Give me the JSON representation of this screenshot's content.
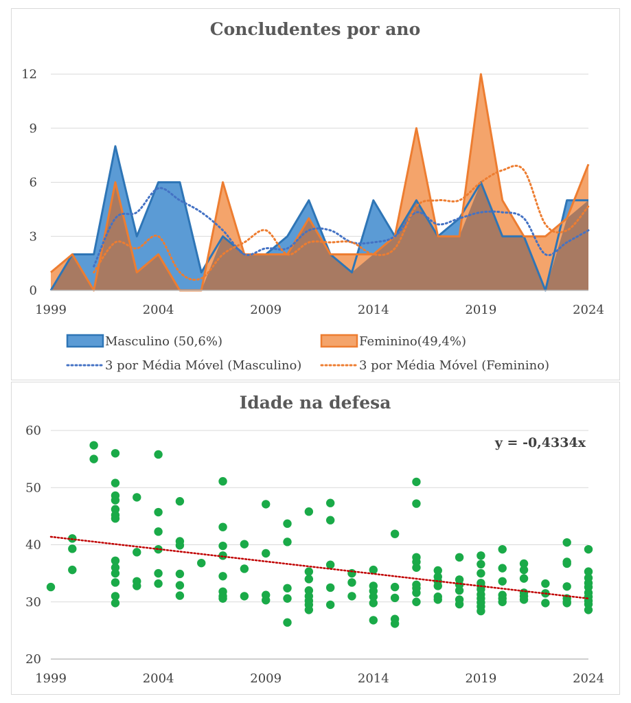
{
  "chart_data": [
    {
      "type": "area",
      "title": "Concludentes por ano",
      "xlabel": "",
      "ylabel": "",
      "x": [
        1999,
        2000,
        2001,
        2002,
        2003,
        2004,
        2005,
        2006,
        2007,
        2008,
        2009,
        2010,
        2011,
        2012,
        2013,
        2014,
        2015,
        2016,
        2017,
        2018,
        2019,
        2020,
        2021,
        2022,
        2023,
        2024
      ],
      "x_ticks": [
        "1999",
        "2004",
        "2009",
        "2014",
        "2019",
        "2024"
      ],
      "y_ticks": [
        "0",
        "3",
        "6",
        "9",
        "12"
      ],
      "ylim": [
        0,
        12
      ],
      "grid": true,
      "legend_position": "bottom",
      "series": [
        {
          "name": "Masculino (50,6%)",
          "kind": "area",
          "values": [
            0,
            2,
            2,
            8,
            3,
            6,
            6,
            1,
            3,
            2,
            2,
            3,
            5,
            2,
            1,
            5,
            3,
            5,
            3,
            4,
            6,
            3,
            3,
            0,
            5,
            5
          ]
        },
        {
          "name": "Feminino(49,4%)",
          "kind": "area",
          "values": [
            1,
            2,
            0,
            6,
            1,
            2,
            0,
            0,
            6,
            2,
            2,
            2,
            4,
            2,
            2,
            2,
            3,
            9,
            3,
            3,
            12,
            5,
            3,
            3,
            4,
            7
          ]
        },
        {
          "name": "3 por Média Móvel (Masculino)",
          "kind": "moving-average",
          "period": 3,
          "of": 0
        },
        {
          "name": "3 por Média Móvel (Feminino)",
          "kind": "moving-average",
          "period": 3,
          "of": 1
        }
      ],
      "colors": {
        "masculino_fill": "#5b9bd5",
        "masculino_line": "#2e75b6",
        "feminino_fill": "#f4a46b",
        "feminino_line": "#ed7d31",
        "overlap": "#a87a62",
        "ma_masculino": "#4472c4",
        "ma_feminino": "#ed7d31",
        "grid": "#d9d9d9"
      }
    },
    {
      "type": "scatter",
      "title": "Idade na defesa",
      "xlabel": "",
      "ylabel": "",
      "xlim": [
        1999,
        2024
      ],
      "ylim": [
        20,
        60
      ],
      "x_ticks": [
        "1999",
        "2004",
        "2009",
        "2014",
        "2019",
        "2024"
      ],
      "y_ticks": [
        "20",
        "30",
        "40",
        "50",
        "60"
      ],
      "grid": true,
      "trendline": {
        "label": "y = -0,4334x",
        "slope": -0.4334,
        "start": [
          1999,
          41.4
        ],
        "end": [
          2024,
          30.6
        ],
        "color": "#c00000"
      },
      "point_color": "#1aaa48",
      "points": [
        [
          1999,
          32.6
        ],
        [
          2000,
          41.1
        ],
        [
          2000,
          39.3
        ],
        [
          2000,
          35.6
        ],
        [
          2001,
          57.4
        ],
        [
          2001,
          55.0
        ],
        [
          2002,
          56.0
        ],
        [
          2002,
          50.8
        ],
        [
          2002,
          48.6
        ],
        [
          2002,
          47.8
        ],
        [
          2002,
          46.2
        ],
        [
          2002,
          45.2
        ],
        [
          2002,
          44.6
        ],
        [
          2002,
          37.2
        ],
        [
          2002,
          36.0
        ],
        [
          2002,
          35.0
        ],
        [
          2002,
          33.4
        ],
        [
          2002,
          31.0
        ],
        [
          2002,
          29.8
        ],
        [
          2003,
          48.3
        ],
        [
          2003,
          38.7
        ],
        [
          2003,
          33.6
        ],
        [
          2003,
          32.8
        ],
        [
          2004,
          55.8
        ],
        [
          2004,
          45.7
        ],
        [
          2004,
          42.3
        ],
        [
          2004,
          39.2
        ],
        [
          2004,
          35.0
        ],
        [
          2004,
          33.2
        ],
        [
          2005,
          47.6
        ],
        [
          2005,
          40.6
        ],
        [
          2005,
          39.9
        ],
        [
          2005,
          34.9
        ],
        [
          2005,
          32.9
        ],
        [
          2005,
          31.1
        ],
        [
          2006,
          36.8
        ],
        [
          2007,
          51.1
        ],
        [
          2007,
          43.1
        ],
        [
          2007,
          39.8
        ],
        [
          2007,
          38.1
        ],
        [
          2007,
          34.5
        ],
        [
          2007,
          31.8
        ],
        [
          2007,
          31.0
        ],
        [
          2007,
          30.6
        ],
        [
          2008,
          40.1
        ],
        [
          2008,
          35.8
        ],
        [
          2008,
          31.0
        ],
        [
          2009,
          47.1
        ],
        [
          2009,
          38.5
        ],
        [
          2009,
          31.2
        ],
        [
          2009,
          30.3
        ],
        [
          2010,
          43.7
        ],
        [
          2010,
          40.5
        ],
        [
          2010,
          32.4
        ],
        [
          2010,
          30.6
        ],
        [
          2010,
          26.4
        ],
        [
          2011,
          45.8
        ],
        [
          2011,
          35.3
        ],
        [
          2011,
          34.0
        ],
        [
          2011,
          32.0
        ],
        [
          2011,
          31.0
        ],
        [
          2011,
          30.2
        ],
        [
          2011,
          29.5
        ],
        [
          2011,
          28.6
        ],
        [
          2012,
          47.3
        ],
        [
          2012,
          44.3
        ],
        [
          2012,
          36.5
        ],
        [
          2012,
          32.5
        ],
        [
          2012,
          29.5
        ],
        [
          2013,
          35.0
        ],
        [
          2013,
          33.4
        ],
        [
          2013,
          31.0
        ],
        [
          2014,
          35.6
        ],
        [
          2014,
          32.8
        ],
        [
          2014,
          31.9
        ],
        [
          2014,
          30.9
        ],
        [
          2014,
          29.8
        ],
        [
          2014,
          26.8
        ],
        [
          2015,
          41.9
        ],
        [
          2015,
          32.6
        ],
        [
          2015,
          30.7
        ],
        [
          2015,
          27.0
        ],
        [
          2015,
          26.2
        ],
        [
          2016,
          51.0
        ],
        [
          2016,
          47.2
        ],
        [
          2016,
          37.8
        ],
        [
          2016,
          37.0
        ],
        [
          2016,
          36.0
        ],
        [
          2016,
          33.0
        ],
        [
          2016,
          32.4
        ],
        [
          2016,
          31.6
        ],
        [
          2016,
          30.0
        ],
        [
          2017,
          35.5
        ],
        [
          2017,
          34.4
        ],
        [
          2017,
          33.6
        ],
        [
          2017,
          32.8
        ],
        [
          2017,
          30.9
        ],
        [
          2017,
          30.4
        ],
        [
          2018,
          37.8
        ],
        [
          2018,
          33.9
        ],
        [
          2018,
          33.0
        ],
        [
          2018,
          32.0
        ],
        [
          2018,
          30.4
        ],
        [
          2018,
          29.6
        ],
        [
          2019,
          38.1
        ],
        [
          2019,
          36.6
        ],
        [
          2019,
          35.0
        ],
        [
          2019,
          33.3
        ],
        [
          2019,
          32.8
        ],
        [
          2019,
          32.2
        ],
        [
          2019,
          31.3
        ],
        [
          2019,
          30.6
        ],
        [
          2019,
          29.9
        ],
        [
          2019,
          29.2
        ],
        [
          2019,
          28.4
        ],
        [
          2020,
          39.2
        ],
        [
          2020,
          35.9
        ],
        [
          2020,
          33.6
        ],
        [
          2020,
          31.2
        ],
        [
          2020,
          30.6
        ],
        [
          2020,
          30.0
        ],
        [
          2021,
          36.7
        ],
        [
          2021,
          35.6
        ],
        [
          2021,
          34.1
        ],
        [
          2021,
          31.6
        ],
        [
          2021,
          31.0
        ],
        [
          2021,
          30.4
        ],
        [
          2022,
          33.2
        ],
        [
          2022,
          31.5
        ],
        [
          2022,
          29.8
        ],
        [
          2023,
          40.4
        ],
        [
          2023,
          37.0
        ],
        [
          2023,
          36.7
        ],
        [
          2023,
          32.7
        ],
        [
          2023,
          30.6
        ],
        [
          2023,
          30.0
        ],
        [
          2023,
          29.8
        ],
        [
          2024,
          39.2
        ],
        [
          2024,
          35.3
        ],
        [
          2024,
          34.2
        ],
        [
          2024,
          33.3
        ],
        [
          2024,
          32.6
        ],
        [
          2024,
          31.6
        ],
        [
          2024,
          30.9
        ],
        [
          2024,
          30.2
        ],
        [
          2024,
          29.6
        ],
        [
          2024,
          28.6
        ]
      ]
    }
  ]
}
